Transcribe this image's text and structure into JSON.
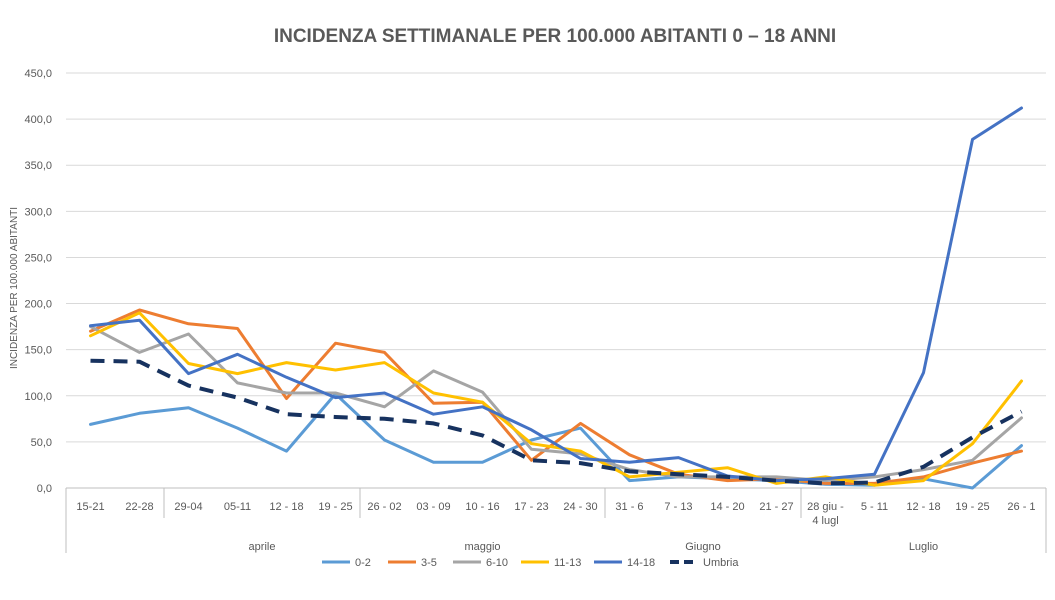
{
  "chart_data": {
    "type": "line",
    "title": "INCIDENZA SETTIMANALE PER 100.000 ABITANTI 0 – 18 ANNI",
    "ylabel": "INCIDENZA PER 100.000 ABITANTI",
    "xlabel": "",
    "ylim": [
      0,
      450
    ],
    "yticks": [
      "0,0",
      "50,0",
      "100,0",
      "150,0",
      "200,0",
      "250,0",
      "300,0",
      "350,0",
      "400,0",
      "450,0"
    ],
    "categories": [
      "15-21",
      "22-28",
      "29-04",
      "05-11",
      "12 - 18",
      "19 - 25",
      "26 - 02",
      "03 - 09",
      "10 - 16",
      "17 - 23",
      "24 - 30",
      "31 - 6",
      "7 - 13",
      "14 - 20",
      "21 - 27",
      "28 giu - 4 lugl",
      "5 - 11",
      "12 - 18",
      "19 - 25",
      "26 - 1"
    ],
    "groups": [
      {
        "label": "",
        "span": 2
      },
      {
        "label": "aprile",
        "span": 4
      },
      {
        "label": "maggio",
        "span": 5
      },
      {
        "label": "Giugno",
        "span": 4
      },
      {
        "label": "Luglio",
        "span": 5
      }
    ],
    "series": [
      {
        "name": "0-2",
        "color": "#5B9BD5",
        "dash": "solid",
        "values": [
          69,
          81,
          87,
          65,
          40,
          102,
          52,
          28,
          28,
          52,
          65,
          8,
          12,
          10,
          8,
          4,
          3,
          10,
          0,
          46
        ]
      },
      {
        "name": "3-5",
        "color": "#ED7D31",
        "dash": "solid",
        "values": [
          170,
          193,
          178,
          173,
          97,
          157,
          147,
          92,
          93,
          30,
          70,
          36,
          15,
          8,
          10,
          5,
          5,
          12,
          27,
          40
        ]
      },
      {
        "name": "6-10",
        "color": "#A5A5A5",
        "dash": "solid",
        "values": [
          175,
          147,
          167,
          114,
          103,
          103,
          88,
          127,
          104,
          42,
          37,
          20,
          12,
          12,
          12,
          8,
          12,
          20,
          30,
          76
        ]
      },
      {
        "name": "11-13",
        "color": "#FFC000",
        "dash": "solid",
        "values": [
          165,
          190,
          135,
          124,
          136,
          128,
          136,
          103,
          93,
          48,
          40,
          12,
          17,
          22,
          5,
          12,
          3,
          8,
          48,
          116
        ]
      },
      {
        "name": "14-18",
        "color": "#4472C4",
        "dash": "solid",
        "values": [
          176,
          182,
          124,
          145,
          120,
          98,
          103,
          80,
          88,
          63,
          32,
          28,
          33,
          13,
          8,
          10,
          15,
          125,
          378,
          412
        ]
      },
      {
        "name": "Umbria",
        "color": "#17325F",
        "dash": "dashed",
        "values": [
          138,
          137,
          111,
          98,
          80,
          77,
          75,
          70,
          57,
          30,
          27,
          18,
          15,
          12,
          8,
          5,
          6,
          23,
          55,
          83
        ]
      }
    ],
    "legend_position": "bottom",
    "grid": "horizontal"
  }
}
